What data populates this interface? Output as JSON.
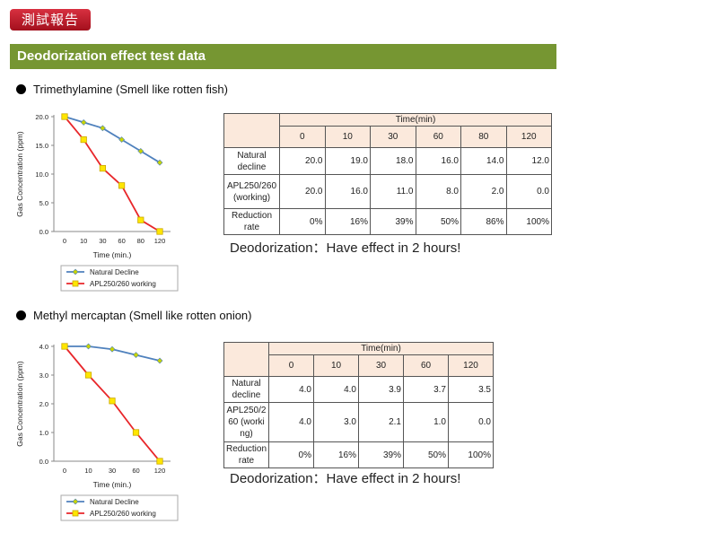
{
  "header": {
    "badge": "測試報告",
    "banner": "Deodorization effect test data"
  },
  "sections": [
    {
      "heading": "Trimethylamine (Smell like rotten fish)",
      "note": "Deodorization：Have effect in 2 hours!",
      "table": {
        "group_header": "Time(min)",
        "columns": [
          "0",
          "10",
          "30",
          "60",
          "80",
          "120"
        ],
        "rows": [
          {
            "label": "Natural decline",
            "values": [
              "20.0",
              "19.0",
              "18.0",
              "16.0",
              "14.0",
              "12.0"
            ]
          },
          {
            "label": "APL250/260 (working)",
            "values": [
              "20.0",
              "16.0",
              "11.0",
              "8.0",
              "2.0",
              "0.0"
            ]
          },
          {
            "label": "Reduction rate",
            "values": [
              "0%",
              "16%",
              "39%",
              "50%",
              "86%",
              "100%"
            ]
          }
        ]
      }
    },
    {
      "heading": "Methyl mercaptan (Smell like rotten onion)",
      "note": "Deodorization：Have effect in 2 hours!",
      "table": {
        "group_header": "Time(min)",
        "columns": [
          "0",
          "10",
          "30",
          "60",
          "120"
        ],
        "rows": [
          {
            "label": "Natural decline",
            "values": [
              "4.0",
              "4.0",
              "3.9",
              "3.7",
              "3.5"
            ]
          },
          {
            "label": "APL250/260 (working)",
            "values": [
              "4.0",
              "3.0",
              "2.1",
              "1.0",
              "0.0"
            ]
          },
          {
            "label": "Reduction rate",
            "values": [
              "0%",
              "16%",
              "39%",
              "50%",
              "100%"
            ]
          }
        ]
      }
    }
  ],
  "colors": {
    "banner": "#769632",
    "badge": "#c0202d",
    "natural": "#4f81bd",
    "apl": "#e8262a",
    "apl_marker": "#ffe600",
    "natural_marker": "#c8d400",
    "table_header": "#fbe9dc"
  },
  "chart_data": [
    {
      "type": "line",
      "categories": [
        "0",
        "10",
        "30",
        "60",
        "80",
        "120"
      ],
      "series": [
        {
          "name": "Natural Decline",
          "values": [
            20,
            19,
            18,
            16,
            14,
            12
          ]
        },
        {
          "name": "APL250/260 working",
          "values": [
            20,
            16,
            11,
            8,
            2,
            0
          ]
        }
      ],
      "xlabel": "Time (min.)",
      "ylabel": "Gas Concentration (ppm)",
      "yticks": [
        "0.0",
        "5.0",
        "10.0",
        "15.0",
        "20.0"
      ],
      "ylim": [
        0,
        20
      ],
      "legend_position": "bottom",
      "grid": false
    },
    {
      "type": "line",
      "categories": [
        "0",
        "10",
        "30",
        "60",
        "120"
      ],
      "series": [
        {
          "name": "Natural Decline",
          "values": [
            4.0,
            4.0,
            3.9,
            3.7,
            3.5
          ]
        },
        {
          "name": "APL250/260 working",
          "values": [
            4.0,
            3.0,
            2.1,
            1.0,
            0.0
          ]
        }
      ],
      "xlabel": "Time (min.)",
      "ylabel": "Gas Concentration (ppm)",
      "yticks": [
        "0.0",
        "1.0",
        "2.0",
        "3.0",
        "4.0"
      ],
      "ylim": [
        0,
        4
      ],
      "legend_position": "bottom",
      "grid": false
    }
  ]
}
